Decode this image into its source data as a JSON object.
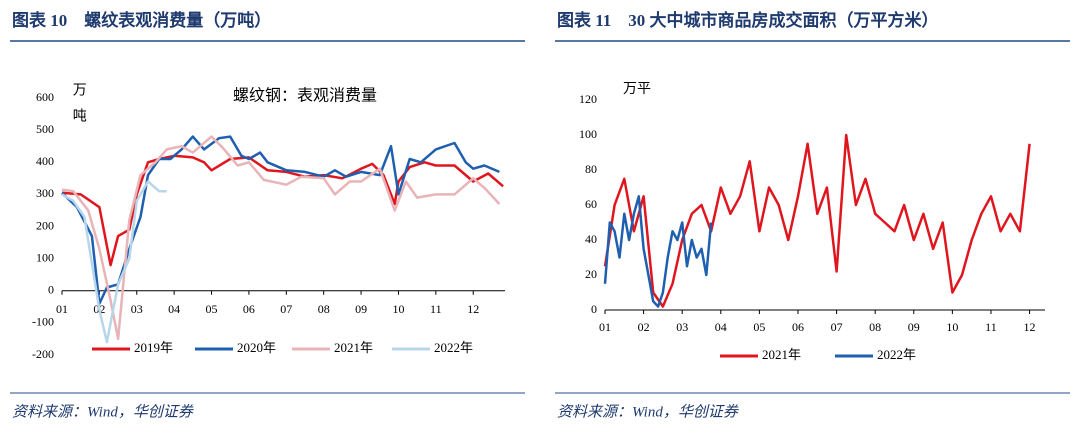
{
  "chart_data": [
    {
      "type": "line",
      "title": "图表 10　螺纹表观消费量（万吨）",
      "annotation": "螺纹钢：表观消费量",
      "y_label": "万吨",
      "source": "资料来源：Wind，华创证券",
      "xlim": [
        1,
        12.85
      ],
      "xticks": [
        {
          "value": 1,
          "label": "01"
        },
        {
          "value": 2,
          "label": "02"
        },
        {
          "value": 3,
          "label": "03"
        },
        {
          "value": 4,
          "label": "04"
        },
        {
          "value": 5,
          "label": "05"
        },
        {
          "value": 6,
          "label": "06"
        },
        {
          "value": 7,
          "label": "07"
        },
        {
          "value": 8,
          "label": "08"
        },
        {
          "value": 9,
          "label": "09"
        },
        {
          "value": 10,
          "label": "10"
        },
        {
          "value": 11,
          "label": "11"
        },
        {
          "value": 12,
          "label": "12"
        }
      ],
      "ylim": [
        -200,
        600
      ],
      "yticks": [
        -200,
        -100,
        0,
        100,
        200,
        300,
        400,
        500,
        600
      ],
      "series": [
        {
          "name": "2019年",
          "color": "#e0161f",
          "x": [
            1,
            1.5,
            2,
            2.3,
            2.5,
            2.8,
            3,
            3.3,
            3.6,
            4,
            4.5,
            4.8,
            5,
            5.5,
            6,
            6.5,
            7,
            7.5,
            8,
            8.5,
            9,
            9.3,
            9.6,
            9.9,
            10,
            10.3,
            10.7,
            11,
            11.5,
            12,
            12.4,
            12.8
          ],
          "values": [
            305,
            300,
            260,
            80,
            170,
            190,
            300,
            400,
            410,
            420,
            415,
            400,
            375,
            410,
            415,
            375,
            370,
            355,
            360,
            350,
            380,
            395,
            360,
            270,
            340,
            385,
            400,
            390,
            390,
            340,
            365,
            325
          ]
        },
        {
          "name": "2020年",
          "color": "#1f5fb0",
          "x": [
            1,
            1.4,
            1.8,
            2,
            2.2,
            2.5,
            2.8,
            3.1,
            3.3,
            3.6,
            3.9,
            4.2,
            4.5,
            4.8,
            5.2,
            5.5,
            5.8,
            6,
            6.3,
            6.5,
            7,
            7.5,
            8,
            8.3,
            8.6,
            9,
            9.5,
            9.8,
            10,
            10.3,
            10.6,
            11,
            11.5,
            11.8,
            12,
            12.3,
            12.7
          ],
          "values": [
            305,
            260,
            170,
            -40,
            10,
            20,
            130,
            230,
            360,
            410,
            410,
            440,
            480,
            440,
            475,
            480,
            420,
            410,
            430,
            400,
            375,
            370,
            355,
            375,
            355,
            370,
            360,
            450,
            300,
            410,
            400,
            440,
            460,
            400,
            380,
            390,
            370
          ]
        },
        {
          "name": "2021年",
          "color": "#e8b4b8",
          "x": [
            1,
            1.3,
            1.7,
            2,
            2.3,
            2.5,
            2.8,
            3.1,
            3.5,
            3.8,
            4.2,
            4.5,
            5,
            5.3,
            5.7,
            6,
            6.4,
            7,
            7.4,
            8,
            8.3,
            8.7,
            9,
            9.5,
            9.9,
            10.2,
            10.5,
            11,
            11.5,
            12,
            12.3,
            12.7
          ],
          "values": [
            315,
            310,
            250,
            130,
            -30,
            -150,
            220,
            360,
            400,
            440,
            450,
            430,
            480,
            445,
            390,
            400,
            345,
            330,
            355,
            350,
            300,
            340,
            340,
            380,
            250,
            340,
            290,
            300,
            300,
            350,
            320,
            270
          ]
        },
        {
          "name": "2022年",
          "color": "#b7d6ea",
          "x": [
            1,
            1.3,
            1.6,
            2,
            2.2,
            2.5,
            2.8,
            3,
            3.3,
            3.6,
            3.8
          ],
          "values": [
            300,
            280,
            230,
            -60,
            -160,
            20,
            100,
            280,
            340,
            310,
            310
          ]
        }
      ]
    },
    {
      "type": "line",
      "title": "图表 11　30 大中城市商品房成交面积（万平方米）",
      "y_label": "万平",
      "source": "资料来源：Wind，华创证券",
      "xlim": [
        1,
        12.4
      ],
      "xticks": [
        {
          "value": 1,
          "label": "01"
        },
        {
          "value": 2,
          "label": "02"
        },
        {
          "value": 3,
          "label": "03"
        },
        {
          "value": 4,
          "label": "04"
        },
        {
          "value": 5,
          "label": "05"
        },
        {
          "value": 6,
          "label": "06"
        },
        {
          "value": 7,
          "label": "07"
        },
        {
          "value": 8,
          "label": "08"
        },
        {
          "value": 9,
          "label": "09"
        },
        {
          "value": 10,
          "label": "10"
        },
        {
          "value": 11,
          "label": "11"
        },
        {
          "value": 12,
          "label": "12"
        }
      ],
      "ylim": [
        0,
        120
      ],
      "yticks": [
        0,
        20,
        40,
        60,
        80,
        100,
        120
      ],
      "series": [
        {
          "name": "2021年",
          "color": "#e0161f",
          "x": [
            1,
            1.25,
            1.5,
            1.75,
            2,
            2.25,
            2.5,
            2.75,
            3,
            3.25,
            3.5,
            3.75,
            4,
            4.25,
            4.5,
            4.75,
            5,
            5.25,
            5.5,
            5.75,
            6,
            6.25,
            6.5,
            6.75,
            7,
            7.25,
            7.5,
            7.75,
            8,
            8.25,
            8.5,
            8.75,
            9,
            9.25,
            9.5,
            9.75,
            10,
            10.25,
            10.5,
            10.75,
            11,
            11.25,
            11.5,
            11.75,
            12
          ],
          "values": [
            25,
            60,
            75,
            45,
            65,
            10,
            2,
            15,
            40,
            55,
            60,
            45,
            70,
            55,
            65,
            85,
            45,
            70,
            60,
            40,
            65,
            95,
            55,
            70,
            22,
            100,
            60,
            75,
            55,
            50,
            45,
            60,
            40,
            55,
            35,
            50,
            10,
            20,
            40,
            55,
            65,
            45,
            55,
            45,
            95
          ]
        },
        {
          "name": "2022年",
          "color": "#1f5fb0",
          "x": [
            1,
            1.125,
            1.25,
            1.375,
            1.5,
            1.625,
            1.75,
            1.875,
            2,
            2.125,
            2.25,
            2.375,
            2.5,
            2.625,
            2.75,
            2.875,
            3,
            3.125,
            3.25,
            3.375,
            3.5,
            3.625,
            3.75
          ],
          "values": [
            15,
            50,
            45,
            30,
            55,
            40,
            55,
            65,
            35,
            20,
            5,
            2,
            10,
            30,
            45,
            40,
            50,
            25,
            40,
            30,
            35,
            20,
            50
          ]
        }
      ]
    }
  ]
}
